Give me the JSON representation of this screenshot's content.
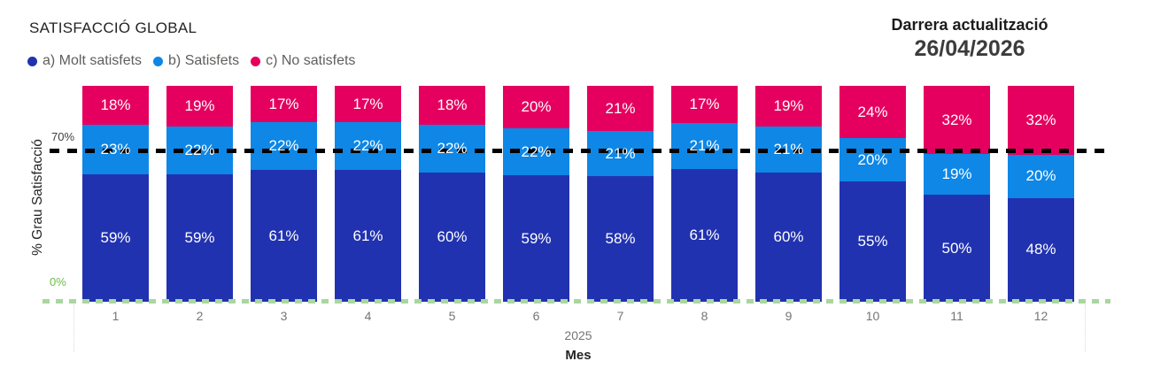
{
  "header": {
    "title": "SATISFACCIÓ GLOBAL",
    "updated_label": "Darrera actualització",
    "updated_date": "26/04/2026"
  },
  "chart_data": {
    "type": "bar",
    "stacked": true,
    "orientation": "vertical",
    "title": "SATISFACCIÓ GLOBAL",
    "categories": [
      "1",
      "2",
      "3",
      "4",
      "5",
      "6",
      "7",
      "8",
      "9",
      "10",
      "11",
      "12"
    ],
    "series": [
      {
        "name": "a) Molt satisfets",
        "color": "#2132B0",
        "values": [
          59,
          59,
          61,
          61,
          60,
          59,
          58,
          61,
          60,
          55,
          50,
          48
        ]
      },
      {
        "name": "b) Satisfets",
        "color": "#0E87E6",
        "values": [
          23,
          22,
          22,
          22,
          22,
          22,
          21,
          21,
          21,
          20,
          19,
          20
        ]
      },
      {
        "name": "c) No satisfets",
        "color": "#E5005F",
        "values": [
          18,
          19,
          17,
          17,
          18,
          20,
          21,
          17,
          19,
          24,
          32,
          32
        ]
      }
    ],
    "ylabel": "% Grau Satisfacció",
    "xlabel": "Mes",
    "year_label": "2025",
    "ylim": [
      0,
      100
    ],
    "y_ticks": [
      {
        "label": "70%",
        "value": 70,
        "color": "#3F3F3F"
      },
      {
        "label": "0%",
        "value": 0,
        "color": "#6CBE4A"
      }
    ],
    "reference_lines": [
      {
        "value": 70,
        "style": "dashed",
        "color": "#000000"
      },
      {
        "value": 0,
        "style": "dashed",
        "color": "#AAD6A0"
      }
    ],
    "legend_position": "top-left",
    "value_labels": "percent-inside-white",
    "grid": false
  }
}
